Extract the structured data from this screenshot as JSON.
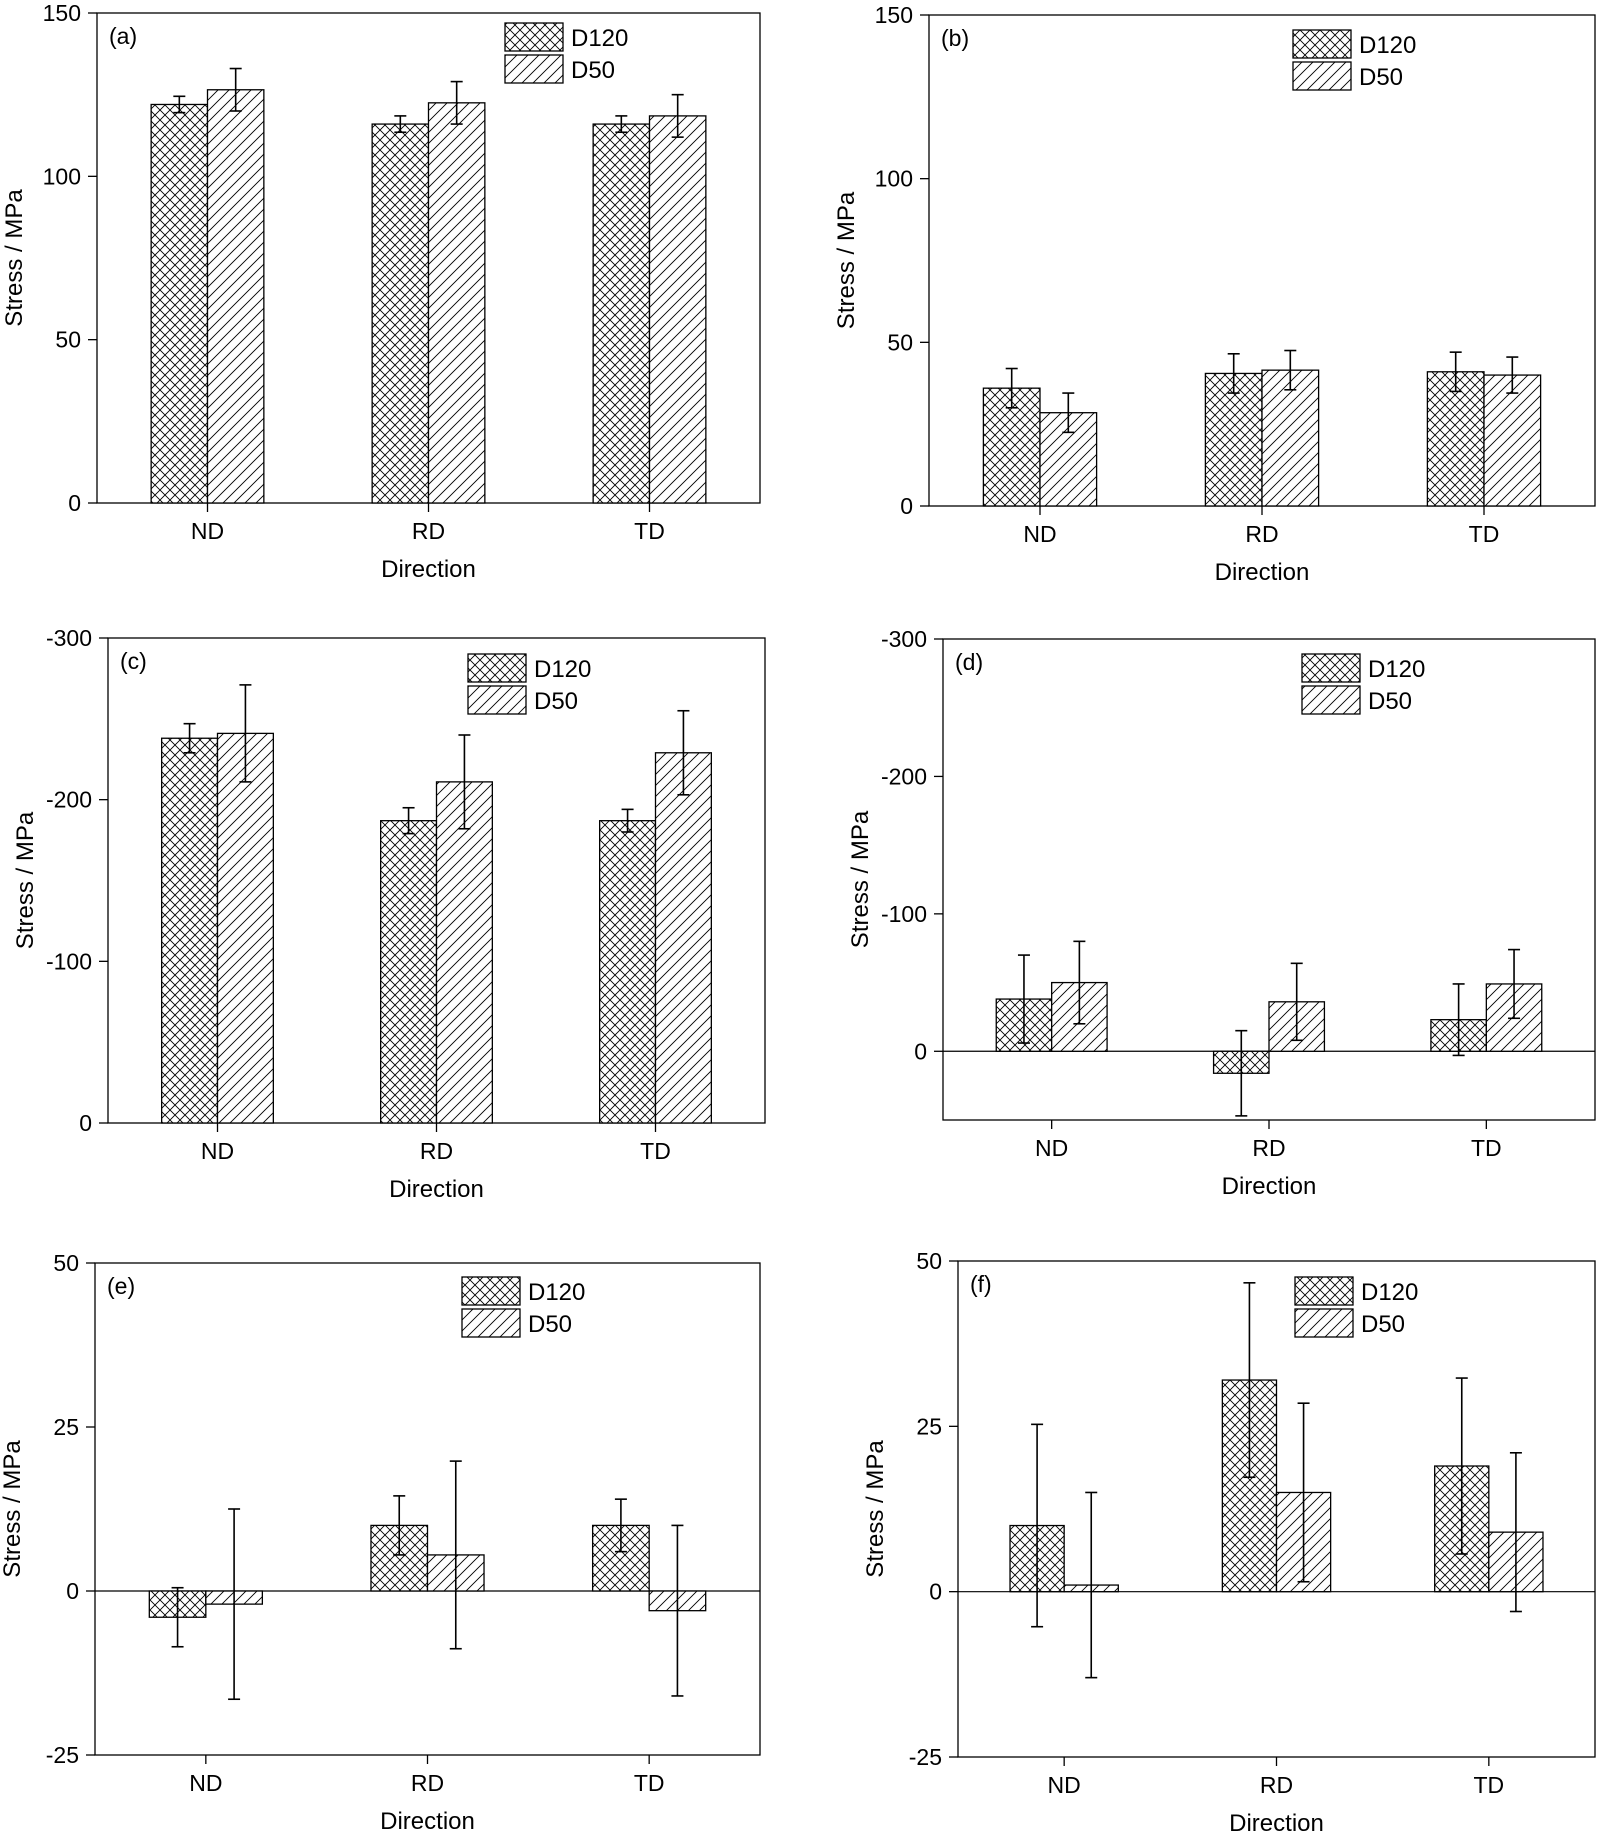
{
  "chart_data": [
    {
      "type": "bar",
      "panel_label": "(a)",
      "categories": [
        "ND",
        "RD",
        "TD"
      ],
      "series": [
        {
          "name": "D120",
          "values": [
            122,
            116,
            116
          ],
          "errors": [
            2.5,
            2.5,
            2.5
          ]
        },
        {
          "name": "D50",
          "values": [
            126.5,
            122.5,
            118.5
          ],
          "errors": [
            6.5,
            6.5,
            6.5
          ]
        }
      ],
      "xlabel": "Direction",
      "ylabel": "Stress / MPa",
      "ylim": [
        0,
        150
      ],
      "yticks": [
        0,
        50,
        100,
        150
      ],
      "ytick_labels": [
        "0",
        "50",
        "100",
        "150"
      ],
      "inverted": false,
      "zero_line": false,
      "legend_position": "top-right"
    },
    {
      "type": "bar",
      "panel_label": "(b)",
      "categories": [
        "ND",
        "RD",
        "TD"
      ],
      "series": [
        {
          "name": "D120",
          "values": [
            36,
            40.5,
            41
          ],
          "errors": [
            6,
            6,
            6
          ]
        },
        {
          "name": "D50",
          "values": [
            28.5,
            41.5,
            40
          ],
          "errors": [
            6,
            6,
            5.5
          ]
        }
      ],
      "xlabel": "Direction",
      "ylabel": "Stress / MPa",
      "ylim": [
        0,
        150
      ],
      "yticks": [
        0,
        50,
        100,
        150
      ],
      "ytick_labels": [
        "0",
        "50",
        "100",
        "150"
      ],
      "inverted": false,
      "zero_line": false,
      "legend_position": "top-right"
    },
    {
      "type": "bar",
      "panel_label": "(c)",
      "categories": [
        "ND",
        "RD",
        "TD"
      ],
      "series": [
        {
          "name": "D120",
          "values": [
            -238,
            -187,
            -187
          ],
          "errors": [
            9,
            8,
            7
          ]
        },
        {
          "name": "D50",
          "values": [
            -241,
            -211,
            -229
          ],
          "errors": [
            30,
            29,
            26
          ]
        }
      ],
      "xlabel": "Direction",
      "ylabel": "Stress / MPa",
      "ylim": [
        -300,
        0
      ],
      "yticks": [
        0,
        -100,
        -200,
        -300
      ],
      "ytick_labels": [
        "0",
        "-100",
        "-200",
        "-300"
      ],
      "inverted": true,
      "zero_line": false,
      "legend_position": "top-right"
    },
    {
      "type": "bar",
      "panel_label": "(d)",
      "categories": [
        "ND",
        "RD",
        "TD"
      ],
      "series": [
        {
          "name": "D120",
          "values": [
            -38,
            16,
            -23
          ],
          "errors": [
            32,
            31,
            26
          ]
        },
        {
          "name": "D50",
          "values": [
            -50,
            -36,
            -49
          ],
          "errors": [
            30,
            28,
            25
          ]
        }
      ],
      "xlabel": "Direction",
      "ylabel": "Stress / MPa",
      "ylim": [
        -300,
        50
      ],
      "yticks": [
        0,
        -100,
        -200,
        -300
      ],
      "ytick_labels": [
        "0",
        "-100",
        "-200",
        "-300"
      ],
      "inverted": true,
      "zero_line": true,
      "legend_position": "top-right"
    },
    {
      "type": "bar",
      "panel_label": "(e)",
      "categories": [
        "ND",
        "RD",
        "TD"
      ],
      "series": [
        {
          "name": "D120",
          "values": [
            -4,
            10,
            10
          ],
          "errors": [
            4.5,
            4.5,
            4
          ]
        },
        {
          "name": "D50",
          "values": [
            -2,
            5.5,
            -3
          ],
          "errors": [
            14.5,
            14.3,
            13
          ]
        }
      ],
      "xlabel": "Direction",
      "ylabel": "Stress / MPa",
      "ylim": [
        -25,
        50
      ],
      "yticks": [
        -25,
        0,
        25,
        50
      ],
      "ytick_labels": [
        "-25",
        "0",
        "25",
        "50"
      ],
      "inverted": false,
      "zero_line": true,
      "legend_position": "top-right"
    },
    {
      "type": "bar",
      "panel_label": "(f)",
      "categories": [
        "ND",
        "RD",
        "TD"
      ],
      "series": [
        {
          "name": "D120",
          "values": [
            10,
            32,
            19
          ],
          "errors": [
            15.3,
            14.7,
            13.3
          ]
        },
        {
          "name": "D50",
          "values": [
            1,
            15,
            9
          ],
          "errors": [
            14,
            13.5,
            12
          ]
        }
      ],
      "xlabel": "Direction",
      "ylabel": "Stress / MPa",
      "ylim": [
        -25,
        50
      ],
      "yticks": [
        -25,
        0,
        25,
        50
      ],
      "ytick_labels": [
        "-25",
        "0",
        "25",
        "50"
      ],
      "inverted": false,
      "zero_line": true,
      "legend_position": "top-right"
    }
  ]
}
